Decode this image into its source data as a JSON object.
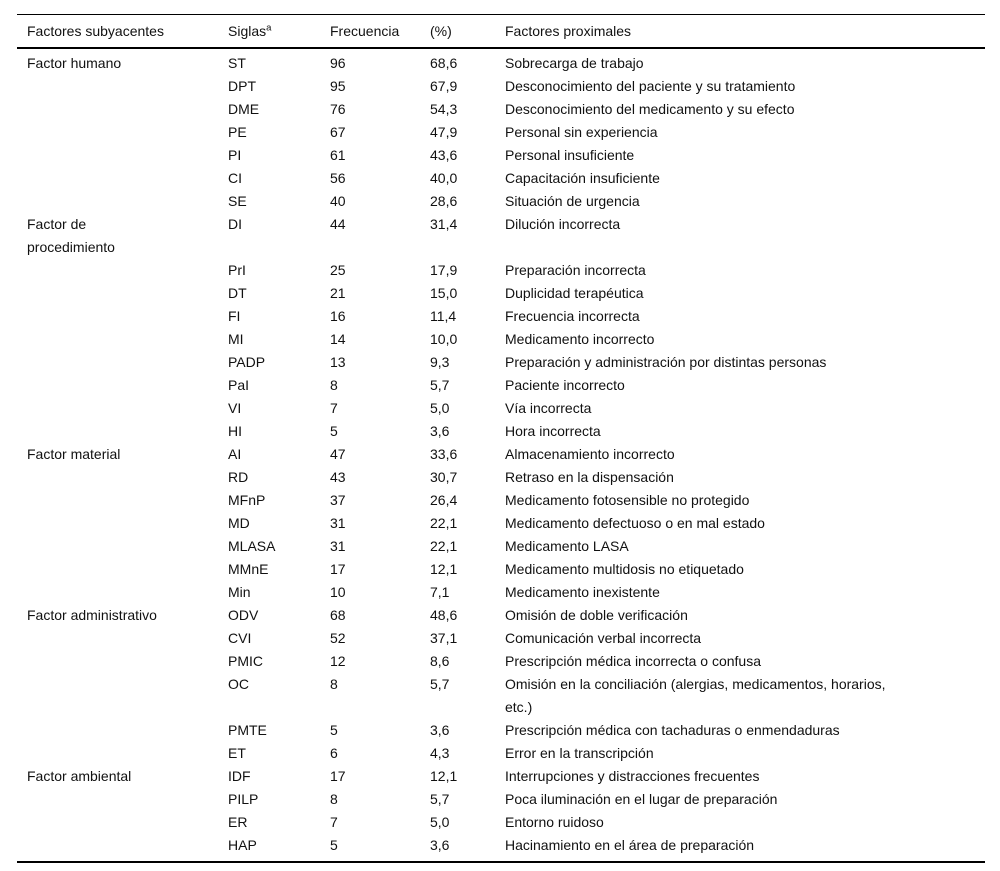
{
  "table": {
    "headers": {
      "underlying": "Factores subyacentes",
      "siglas": "Siglas",
      "siglas_sup": "a",
      "frequency": "Frecuencia",
      "percent": "(%)",
      "proximal": "Factores proximales"
    },
    "rows": [
      {
        "category": "Factor humano",
        "sigla": "ST",
        "freq": "96",
        "pct": "68,6",
        "proximal": "Sobrecarga de trabajo"
      },
      {
        "category": "",
        "sigla": "DPT",
        "freq": "95",
        "pct": "67,9",
        "proximal": "Desconocimiento del paciente y su tratamiento"
      },
      {
        "category": "",
        "sigla": "DME",
        "freq": "76",
        "pct": "54,3",
        "proximal": "Desconocimiento del medicamento y su efecto"
      },
      {
        "category": "",
        "sigla": "PE",
        "freq": "67",
        "pct": "47,9",
        "proximal": "Personal sin experiencia"
      },
      {
        "category": "",
        "sigla": "PI",
        "freq": "61",
        "pct": "43,6",
        "proximal": "Personal insuficiente"
      },
      {
        "category": "",
        "sigla": "CI",
        "freq": "56",
        "pct": "40,0",
        "proximal": "Capacitación insuficiente"
      },
      {
        "category": "",
        "sigla": "SE",
        "freq": "40",
        "pct": "28,6",
        "proximal": "Situación de urgencia"
      },
      {
        "category": "Factor de\nprocedimiento",
        "sigla": "DI",
        "freq": "44",
        "pct": "31,4",
        "proximal": "Dilución incorrecta"
      },
      {
        "category": "",
        "sigla": "PrI",
        "freq": "25",
        "pct": "17,9",
        "proximal": "Preparación incorrecta"
      },
      {
        "category": "",
        "sigla": "DT",
        "freq": "21",
        "pct": "15,0",
        "proximal": "Duplicidad terapéutica"
      },
      {
        "category": "",
        "sigla": "FI",
        "freq": "16",
        "pct": "11,4",
        "proximal": "Frecuencia incorrecta"
      },
      {
        "category": "",
        "sigla": "MI",
        "freq": "14",
        "pct": "10,0",
        "proximal": "Medicamento incorrecto"
      },
      {
        "category": "",
        "sigla": "PADP",
        "freq": "13",
        "pct": "9,3",
        "proximal": "Preparación y administración por distintas personas"
      },
      {
        "category": "",
        "sigla": "PaI",
        "freq": "8",
        "pct": "5,7",
        "proximal": "Paciente incorrecto"
      },
      {
        "category": "",
        "sigla": "VI",
        "freq": "7",
        "pct": "5,0",
        "proximal": "Vía incorrecta"
      },
      {
        "category": "",
        "sigla": "HI",
        "freq": "5",
        "pct": "3,6",
        "proximal": "Hora incorrecta"
      },
      {
        "category": "Factor material",
        "sigla": "AI",
        "freq": "47",
        "pct": "33,6",
        "proximal": "Almacenamiento incorrecto"
      },
      {
        "category": "",
        "sigla": "RD",
        "freq": "43",
        "pct": "30,7",
        "proximal": "Retraso en la dispensación"
      },
      {
        "category": "",
        "sigla": "MFnP",
        "freq": "37",
        "pct": "26,4",
        "proximal": "Medicamento fotosensible no protegido"
      },
      {
        "category": "",
        "sigla": "MD",
        "freq": "31",
        "pct": "22,1",
        "proximal": "Medicamento defectuoso o en mal estado"
      },
      {
        "category": "",
        "sigla": "MLASA",
        "freq": "31",
        "pct": "22,1",
        "proximal": "Medicamento LASA"
      },
      {
        "category": "",
        "sigla": "MMnE",
        "freq": "17",
        "pct": "12,1",
        "proximal": "Medicamento multidosis no etiquetado"
      },
      {
        "category": "",
        "sigla": "Min",
        "freq": "10",
        "pct": "7,1",
        "proximal": "Medicamento inexistente"
      },
      {
        "category": "Factor administrativo",
        "sigla": "ODV",
        "freq": "68",
        "pct": "48,6",
        "proximal": "Omisión de doble verificación"
      },
      {
        "category": "",
        "sigla": "CVI",
        "freq": "52",
        "pct": "37,1",
        "proximal": "Comunicación verbal incorrecta"
      },
      {
        "category": "",
        "sigla": "PMIC",
        "freq": "12",
        "pct": "8,6",
        "proximal": "Prescripción médica incorrecta o confusa"
      },
      {
        "category": "",
        "sigla": "OC",
        "freq": "8",
        "pct": "5,7",
        "proximal": "Omisión en la conciliación (alergias, medicamentos, horarios,\netc.)"
      },
      {
        "category": "",
        "sigla": "PMTE",
        "freq": "5",
        "pct": "3,6",
        "proximal": "Prescripción médica con tachaduras o enmendaduras"
      },
      {
        "category": "",
        "sigla": "ET",
        "freq": "6",
        "pct": "4,3",
        "proximal": "Error en la transcripción"
      },
      {
        "category": "Factor ambiental",
        "sigla": "IDF",
        "freq": "17",
        "pct": "12,1",
        "proximal": "Interrupciones y distracciones frecuentes"
      },
      {
        "category": "",
        "sigla": "PILP",
        "freq": "8",
        "pct": "5,7",
        "proximal": "Poca iluminación en el lugar de preparación"
      },
      {
        "category": "",
        "sigla": "ER",
        "freq": "7",
        "pct": "5,0",
        "proximal": "Entorno ruidoso"
      },
      {
        "category": "",
        "sigla": "HAP",
        "freq": "5",
        "pct": "3,6",
        "proximal": "Hacinamiento en el área de preparación"
      }
    ]
  }
}
